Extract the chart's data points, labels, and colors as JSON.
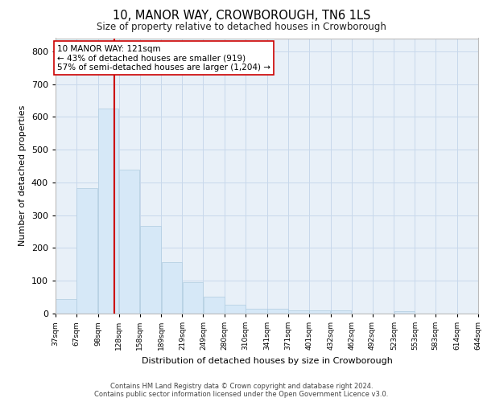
{
  "title": "10, MANOR WAY, CROWBOROUGH, TN6 1LS",
  "subtitle": "Size of property relative to detached houses in Crowborough",
  "xlabel": "Distribution of detached houses by size in Crowborough",
  "ylabel": "Number of detached properties",
  "bar_color": "#d6e8f7",
  "bar_edgecolor": "#b0cce0",
  "grid_color": "#c8d8eb",
  "background_color": "#e8f0f8",
  "vline_x": 121,
  "vline_color": "#cc0000",
  "annotation_text": "10 MANOR WAY: 121sqm\n← 43% of detached houses are smaller (919)\n57% of semi-detached houses are larger (1,204) →",
  "annotation_box_edgecolor": "#cc0000",
  "bins": [
    37,
    67,
    98,
    128,
    158,
    189,
    219,
    249,
    280,
    310,
    341,
    371,
    401,
    432,
    462,
    492,
    523,
    553,
    583,
    614,
    644
  ],
  "values": [
    45,
    382,
    626,
    438,
    268,
    156,
    95,
    52,
    28,
    15,
    15,
    10,
    10,
    10,
    0,
    0,
    8,
    0,
    0,
    0
  ],
  "ylim": [
    0,
    840
  ],
  "yticks": [
    0,
    100,
    200,
    300,
    400,
    500,
    600,
    700,
    800
  ],
  "footer_line1": "Contains HM Land Registry data © Crown copyright and database right 2024.",
  "footer_line2": "Contains public sector information licensed under the Open Government Licence v3.0."
}
